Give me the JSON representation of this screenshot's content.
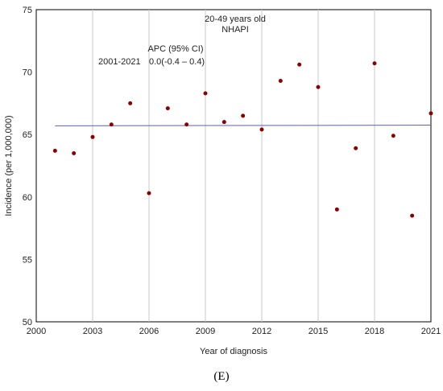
{
  "chart_data": {
    "type": "scatter",
    "title": "20-49 years old",
    "subtitle": "NHAPI",
    "xlabel": "Year of diagnosis",
    "ylabel": "Incidence (per 1,000,000)",
    "xlim": [
      2000,
      2021
    ],
    "ylim": [
      50,
      75
    ],
    "xticks": [
      2000,
      2003,
      2006,
      2009,
      2012,
      2015,
      2018,
      2021
    ],
    "yticks": [
      50,
      55,
      60,
      65,
      70,
      75
    ],
    "grid": "vertical",
    "series": [
      {
        "x": [
          2001,
          2002,
          2003,
          2004,
          2005,
          2006,
          2007,
          2008,
          2009,
          2010,
          2011,
          2012,
          2013,
          2014,
          2015,
          2016,
          2017,
          2018,
          2019,
          2020,
          2021
        ],
        "y": [
          63.7,
          63.5,
          64.8,
          65.8,
          67.5,
          60.3,
          67.1,
          65.8,
          68.3,
          66.0,
          66.5,
          65.4,
          69.3,
          70.6,
          68.8,
          59.0,
          63.9,
          70.7,
          64.9,
          58.5,
          66.7
        ],
        "color": "#8b0000"
      }
    ],
    "trend": {
      "x": [
        2001,
        2021
      ],
      "y": [
        65.7,
        65.75
      ],
      "color": "#5b5bd6"
    },
    "annotations": {
      "apc_header": "APC (95% CI)",
      "period": "2001-2021",
      "apc_value": "0.0(-0.4 – 0.4)"
    }
  },
  "panel_label": "(E)"
}
